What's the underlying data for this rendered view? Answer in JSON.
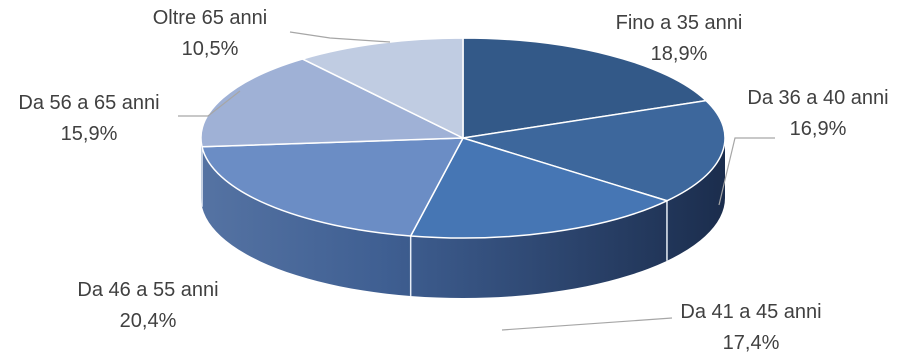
{
  "chart_data": {
    "type": "pie",
    "style": "3d",
    "title": "",
    "legend": "none",
    "slices": [
      {
        "label": "Fino a 35 anni",
        "value": 18.9,
        "display": "18,9%",
        "color": "#335988"
      },
      {
        "label": "Da 36 a 40 anni",
        "value": 16.9,
        "display": "16,9%",
        "color": "#3d679c"
      },
      {
        "label": "Da 41 a 45 anni",
        "value": 17.4,
        "display": "17,4%",
        "color": "#4676b4"
      },
      {
        "label": "Da 46 a 55 anni",
        "value": 20.4,
        "display": "20,4%",
        "color": "#6b8dc5"
      },
      {
        "label": "Da 56 a 65 anni",
        "value": 15.9,
        "display": "15,9%",
        "color": "#9fb1d6"
      },
      {
        "label": "Oltre 65 anni",
        "value": 10.5,
        "display": "10,5%",
        "color": "#c0cce2"
      }
    ]
  }
}
